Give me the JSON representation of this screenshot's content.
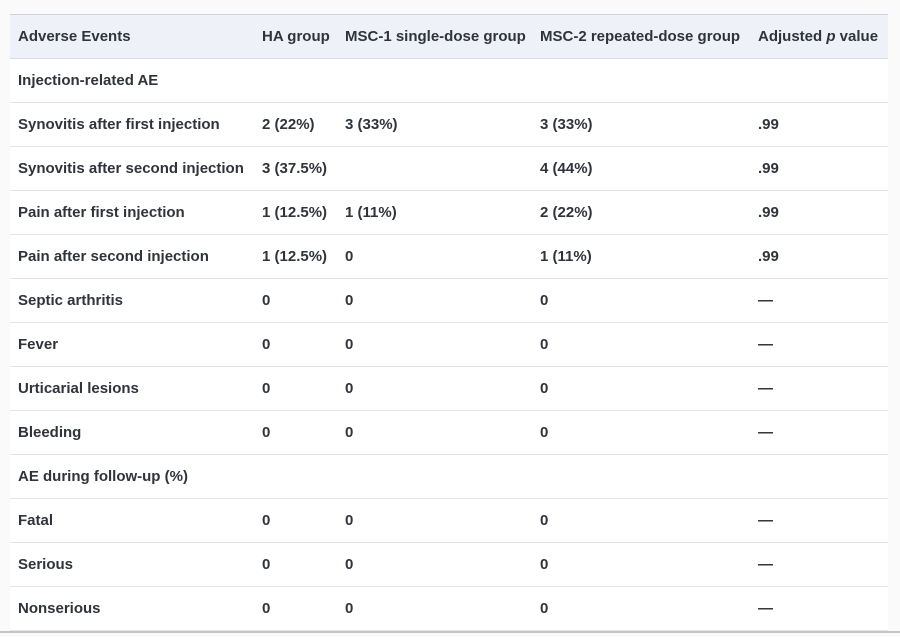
{
  "table": {
    "columns": [
      {
        "label": "Adverse Events"
      },
      {
        "label": "HA group"
      },
      {
        "label": "MSC-1 single-dose group"
      },
      {
        "label": "MSC-2 repeated-dose group"
      },
      {
        "label_pre": "Adjusted ",
        "label_italic": "p",
        "label_post": " value"
      }
    ],
    "rows": [
      {
        "type": "section",
        "label": "Injection-related AE"
      },
      {
        "type": "data",
        "label": "Synovitis after first injection",
        "ha": "2 (22%)",
        "msc1": "3 (33%)",
        "msc2": "3 (33%)",
        "p": ".99"
      },
      {
        "type": "data",
        "label": "Synovitis after second injection",
        "ha": "3 (37.5%)",
        "msc1": "",
        "msc2": "4 (44%)",
        "p": ".99"
      },
      {
        "type": "data",
        "label": "Pain after first injection",
        "ha": "1 (12.5%)",
        "msc1": "1 (11%)",
        "msc2": "2 (22%)",
        "p": ".99"
      },
      {
        "type": "data",
        "label": "Pain after second injection",
        "ha": "1 (12.5%)",
        "msc1": "0",
        "msc2": "1 (11%)",
        "p": ".99"
      },
      {
        "type": "data",
        "label": "Septic arthritis",
        "ha": "0",
        "msc1": "0",
        "msc2": "0",
        "p": "—"
      },
      {
        "type": "data",
        "label": "Fever",
        "ha": "0",
        "msc1": "0",
        "msc2": "0",
        "p": "—"
      },
      {
        "type": "data",
        "label": "Urticarial lesions",
        "ha": "0",
        "msc1": "0",
        "msc2": "0",
        "p": "—"
      },
      {
        "type": "data",
        "label": "Bleeding",
        "ha": "0",
        "msc1": "0",
        "msc2": "0",
        "p": "—"
      },
      {
        "type": "section",
        "label": "AE during follow-up (%)"
      },
      {
        "type": "data",
        "label": "Fatal",
        "ha": "0",
        "msc1": "0",
        "msc2": "0",
        "p": "—"
      },
      {
        "type": "data",
        "label": "Serious",
        "ha": "0",
        "msc1": "0",
        "msc2": "0",
        "p": "—"
      },
      {
        "type": "data",
        "label": "Nonserious",
        "ha": "0",
        "msc1": "0",
        "msc2": "0",
        "p": "—"
      }
    ],
    "colors": {
      "page_background": "#fafafa",
      "header_background": "#eef2f8",
      "row_border": "#e1e4e8",
      "text": "#30333c",
      "bottom_rule": "#c3c5c9"
    }
  },
  "chart_data": {
    "type": "table",
    "title": "Adverse Events",
    "column_headers": [
      "Adverse Events",
      "HA group",
      "MSC-1 single-dose group",
      "MSC-2 repeated-dose group",
      "Adjusted p value"
    ],
    "rows": [
      [
        "Injection-related AE",
        "",
        "",
        "",
        ""
      ],
      [
        "Synovitis after first injection",
        "2 (22%)",
        "3 (33%)",
        "3 (33%)",
        ".99"
      ],
      [
        "Synovitis after second injection",
        "3 (37.5%)",
        "",
        "4 (44%)",
        ".99"
      ],
      [
        "Pain after first injection",
        "1 (12.5%)",
        "1 (11%)",
        "2 (22%)",
        ".99"
      ],
      [
        "Pain after second injection",
        "1 (12.5%)",
        "0",
        "1 (11%)",
        ".99"
      ],
      [
        "Septic arthritis",
        "0",
        "0",
        "0",
        "—"
      ],
      [
        "Fever",
        "0",
        "0",
        "0",
        "—"
      ],
      [
        "Urticarial lesions",
        "0",
        "0",
        "0",
        "—"
      ],
      [
        "Bleeding",
        "0",
        "0",
        "0",
        "—"
      ],
      [
        "AE during follow-up (%)",
        "",
        "",
        "",
        ""
      ],
      [
        "Fatal",
        "0",
        "0",
        "0",
        "—"
      ],
      [
        "Serious",
        "0",
        "0",
        "0",
        "—"
      ],
      [
        "Nonserious",
        "0",
        "0",
        "0",
        "—"
      ]
    ]
  }
}
